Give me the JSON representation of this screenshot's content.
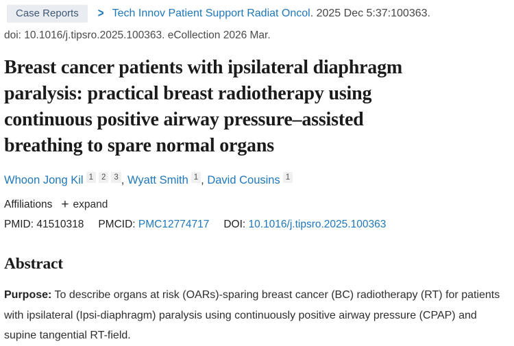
{
  "colors": {
    "link_blue": "#1f77bb",
    "badge_bg": "#e9ecf1",
    "badge_text": "#3f5877",
    "superscript_bg": "#f0f0f0",
    "text_dark": "#212121",
    "text_gray": "#4a4a4a"
  },
  "header": {
    "publication_type": "Case Reports",
    "chevron_icon": ">",
    "journal_link": "Tech Innov Patient Support Radiat Oncol",
    "citation_suffix": ". 2025 Dec 5:37:100363.",
    "doi_line": "doi: 10.1016/j.tipsro.2025.100363. eCollection 2026 Mar."
  },
  "title": {
    "full": "Breast cancer patients with ipsilateral diaphragm paralysis: practical breast radiotherapy using continuous positive airway pressure–assisted breathing to spare normal organs",
    "lines": [
      "Breast cancer patients with ipsilateral diaphragm",
      "paralysis: practical breast radiotherapy using",
      "continuous positive airway pressure–assisted",
      "breathing to spare normal organs"
    ]
  },
  "authors": [
    {
      "name": "Whoon Jong Kil",
      "sups": [
        "1",
        "2",
        "3"
      ],
      "sep": ", "
    },
    {
      "name": "Wyatt Smith",
      "sups": [
        "1"
      ],
      "sep": ", "
    },
    {
      "name": "David Cousins",
      "sups": [
        "1"
      ],
      "sep": ""
    }
  ],
  "affiliations": {
    "label": "Affiliations",
    "plus_icon": "+",
    "expand_label": "expand"
  },
  "identifiers": {
    "pmid_label": "PMID:",
    "pmid_value": "41510318",
    "pmcid_label": "PMCID:",
    "pmcid_value": "PMC12774717",
    "doi_label": "DOI:",
    "doi_value": "10.1016/j.tipsro.2025.100363"
  },
  "abstract": {
    "heading": "Abstract",
    "purpose_label": "Purpose:",
    "purpose_text": " To describe organs at risk (OARs)-sparing breast cancer (BC) radiotherapy (RT) for patients with ipsilateral (Ipsi-diaphragm) paralysis using continuously positive airway pressure (CPAP) and supine tangential RT-field."
  }
}
